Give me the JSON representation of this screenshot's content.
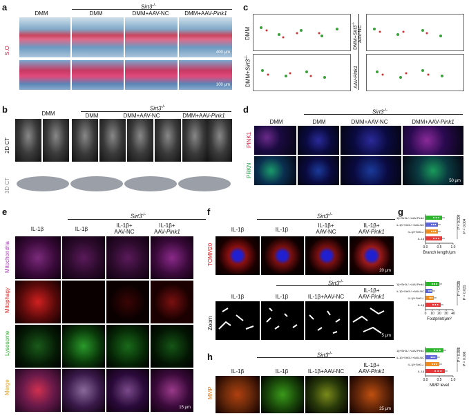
{
  "panels": {
    "a": {
      "label": "a",
      "group": "Sirt3",
      "group_sup": "-/-",
      "columns": [
        "DMM",
        "DMM",
        "DMM+AAV-NC",
        "DMM+AAV-"
      ],
      "col4_italic": "Pink1",
      "row_label": "S.O",
      "scale_top": "400 μm",
      "scale_bottom": "100 μm"
    },
    "b": {
      "label": "b",
      "group": "Sirt3",
      "group_sup": "-/-",
      "columns": [
        "DMM",
        "DMM",
        "DMM+AAV-NC",
        "DMM+AAV-"
      ],
      "col4_italic": "Pink1",
      "row1": "2D CT",
      "row2": "3D CT"
    },
    "c": {
      "label": "c",
      "tl": "DMM",
      "bl_a": "DMM+",
      "bl_b": "Sirt3",
      "bl_sup": "-/-",
      "tr_a": "DMM+",
      "tr_b": "Sirt3",
      "tr_sup": "-/-",
      "tr_c": "AAV-NC",
      "br_a": "AAV-",
      "br_b": "Pink1"
    },
    "d": {
      "label": "d",
      "group": "Sirt3",
      "group_sup": "-/-",
      "columns": [
        "DMM",
        "DMM",
        "DMM+AAV-NC",
        "DMM+AAV-"
      ],
      "col4_italic": "Pink1",
      "row1": "PINK1",
      "row2": "PRKN",
      "scale": "50 μm"
    },
    "e": {
      "label": "e",
      "group": "Sirt3",
      "group_sup": "-/-",
      "columns": [
        "IL-1β",
        "IL-1β",
        "IL-1β+\nAAV-NC",
        "IL-1β+\nAAV-"
      ],
      "col3_a": "IL-1β+",
      "col3_b": "AAV-NC",
      "col4_a": "IL-1β+",
      "col4_b": "AAV-",
      "col4_italic": "Pink1",
      "rows": [
        "Mitochondria",
        "Mitophagy",
        "Lysosome",
        "Merge"
      ],
      "scale": "15 μm"
    },
    "f": {
      "label": "f",
      "group": "Sirt3",
      "group_sup": "-/-",
      "col1": "IL-1β",
      "col2": "IL-1β",
      "col3_a": "IL-1β+",
      "col3_b": "AAV-NC",
      "col4_a": "IL-1β+",
      "col4_b": "AAV-",
      "col4_italic": "Pink1",
      "row1": "TOMM20",
      "scale1": "20 μm",
      "group2": "Sirt3",
      "group2_sup": "-/-",
      "z_col1": "IL-1β",
      "z_col2": "IL-1β",
      "z_col3": "IL-1β+AAV-NC",
      "z_col4_a": "IL-1β+",
      "z_col4_b": "AAV-",
      "z_col4_italic": "Pink1",
      "row2": "Zoom",
      "scale2": "5 μm"
    },
    "h": {
      "label": "h",
      "group": "Sirt3",
      "group_sup": "-/-",
      "col1": "IL-1β",
      "col2": "IL-1β",
      "col3": "IL-1β+AAV-NC",
      "col4_a": "IL-1β+",
      "col4_b": "AAV-",
      "col4_italic": "Pink1",
      "row": "MMP",
      "scale": "25 μm"
    },
    "g": {
      "label": "g",
      "categories": [
        "IL-1β+Sirt3-/-+AAV-Pink1",
        "IL-1β+Sirt3-/-+AAV-NC",
        "IL-1β+Sirt3-/-",
        "IL-1β"
      ]
    }
  },
  "chart_data": [
    {
      "type": "bar",
      "orientation": "horizontal",
      "categories": [
        "IL-1β+Sirt3-/-+AAV-Pink1",
        "IL-1β+Sirt3-/-+AAV-NC",
        "IL-1β+Sirt3-/-",
        "IL-1β"
      ],
      "values": [
        0.6,
        0.45,
        0.45,
        0.6
      ],
      "colors": [
        "#2db52d",
        "#5a63d8",
        "#f08c1e",
        "#e6393c"
      ],
      "xlabel": "Branch length/μm",
      "xticks": [
        "0.0",
        "0.5",
        "1.0"
      ],
      "xlim": [
        0,
        1.0
      ],
      "pvalues": [
        {
          "label": "P =",
          "value": "0.004"
        },
        {
          "label": "P =",
          "value": "0.004"
        }
      ]
    },
    {
      "type": "bar",
      "orientation": "horizontal",
      "categories": [
        "IL-1β+Sirt3-/-+AAV-Pink1",
        "IL-1β+Sirt3-/-+AAV-NC",
        "IL-1β+Sirt3-/-",
        "IL-1β"
      ],
      "values": [
        20,
        10,
        12,
        22
      ],
      "colors": [
        "#2db52d",
        "#5a63d8",
        "#f08c1e",
        "#e6393c"
      ],
      "xlabel": "Footprint/μm²",
      "xticks": [
        "0",
        "10",
        "20",
        "30",
        "40"
      ],
      "xlim": [
        0,
        40
      ],
      "pvalues": [
        {
          "label": "P =",
          "value": "0.039"
        },
        {
          "label": "P =",
          "value": "0.031"
        }
      ]
    },
    {
      "type": "bar",
      "orientation": "horizontal",
      "categories": [
        "IL-1β+Sirt3-/-+AAV-Pink1",
        "IL-1β+Sirt3-/-+AAV-NC",
        "IL-1β+Sirt3-/-",
        "IL-1β"
      ],
      "values": [
        0.65,
        0.42,
        0.5,
        0.7
      ],
      "colors": [
        "#2db52d",
        "#5a63d8",
        "#f08c1e",
        "#e6393c"
      ],
      "xlabel": "MMP level",
      "xticks": [
        "0.0",
        "0.5",
        "1.0"
      ],
      "xlim": [
        0,
        1.0
      ],
      "pvalues": [
        {
          "label": "P =",
          "value": "0.008"
        },
        {
          "label": "P =",
          "value": "0.006"
        }
      ]
    }
  ]
}
